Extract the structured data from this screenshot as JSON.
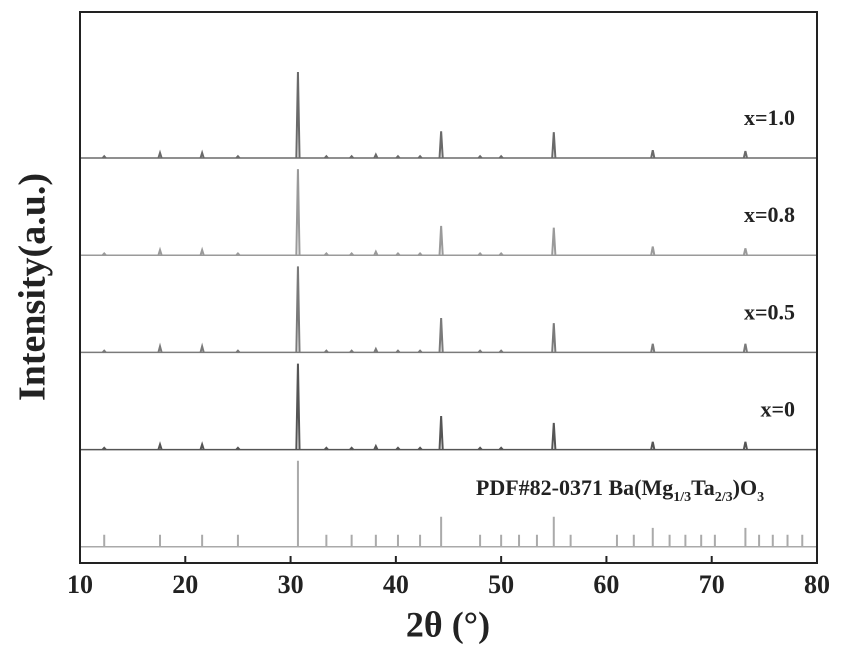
{
  "chart_data": {
    "type": "stick",
    "x_label": "2θ (°)",
    "y_label": "Intensity(a.u.)",
    "xlim": [
      10,
      80
    ],
    "xticks": [
      10,
      20,
      30,
      40,
      50,
      60,
      70,
      80
    ],
    "ylim": [
      0,
      100
    ],
    "series": [
      {
        "name": "x=1.0",
        "color": "#6a6a6a",
        "x": [
          12.3,
          17.6,
          21.6,
          25,
          30.7,
          33.4,
          35.8,
          38.1,
          40.2,
          42.3,
          44.3,
          48,
          50,
          55,
          64.4,
          73.2
        ],
        "values": [
          2,
          6,
          6,
          2,
          100,
          2,
          2,
          4,
          2,
          2,
          31,
          2,
          2,
          30,
          9,
          8
        ]
      },
      {
        "name": "x=0.8",
        "color": "#9a9a9a",
        "x": [
          12.3,
          17.6,
          21.6,
          25,
          30.7,
          33.4,
          35.8,
          38.1,
          40.2,
          42.3,
          44.3,
          48,
          50,
          55,
          64.4,
          73.2
        ],
        "values": [
          2,
          6,
          6,
          2,
          100,
          2,
          2,
          4,
          2,
          2,
          34,
          2,
          2,
          32,
          10,
          8
        ]
      },
      {
        "name": "x=0.5",
        "color": "#7a7a7a",
        "x": [
          12.3,
          17.6,
          21.6,
          25,
          30.7,
          33.4,
          35.8,
          38.1,
          40.2,
          42.3,
          44.3,
          48,
          50,
          55,
          64.4,
          73.2
        ],
        "values": [
          2,
          7,
          7,
          2,
          100,
          2,
          2,
          4,
          2,
          2,
          40,
          2,
          2,
          34,
          10,
          10
        ]
      },
      {
        "name": "x=0",
        "color": "#555555",
        "x": [
          12.3,
          17.6,
          21.6,
          25,
          30.7,
          33.4,
          35.8,
          38.1,
          40.2,
          42.3,
          44.3,
          48,
          50,
          55,
          64.4,
          73.2
        ],
        "values": [
          2,
          6,
          6,
          2,
          100,
          2,
          2,
          4,
          2,
          2,
          39,
          2,
          2,
          31,
          9,
          9
        ]
      },
      {
        "name_parts": [
          {
            "text": "PDF#82-0371 Ba(Mg"
          },
          {
            "text": "1/3",
            "sub": true
          },
          {
            "text": "Ta"
          },
          {
            "text": "2/3",
            "sub": true
          },
          {
            "text": ")O"
          },
          {
            "text": "3",
            "sub": true
          }
        ],
        "color": "#aaaaaa",
        "x": [
          12.3,
          17.6,
          21.6,
          25,
          30.7,
          33.4,
          35.8,
          38.1,
          40.2,
          42.3,
          44.3,
          48,
          50,
          51.7,
          53.4,
          55,
          56.6,
          61,
          62.6,
          64.4,
          66,
          67.5,
          69,
          70.3,
          73.2,
          74.5,
          75.8,
          77.2,
          78.6
        ],
        "values": [
          14,
          14,
          14,
          14,
          100,
          14,
          14,
          14,
          14,
          14,
          35,
          14,
          14,
          14,
          14,
          35,
          14,
          14,
          14,
          22,
          14,
          14,
          14,
          14,
          22,
          14,
          14,
          14,
          14
        ]
      }
    ]
  }
}
